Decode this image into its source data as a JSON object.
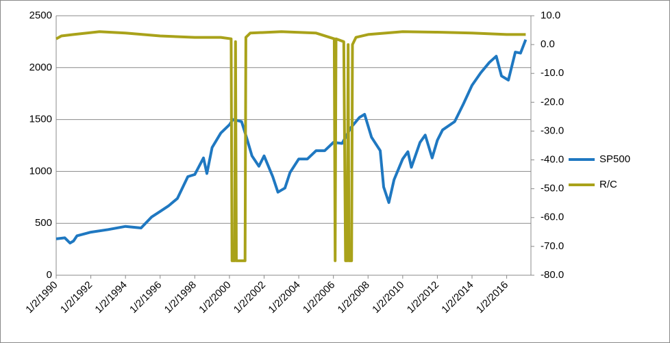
{
  "chart_data": {
    "type": "line",
    "xlim": [
      1990,
      2017.4
    ],
    "xticks": [
      {
        "value": 1990,
        "label": "1/2/1990"
      },
      {
        "value": 1992,
        "label": "1/2/1992"
      },
      {
        "value": 1994,
        "label": "1/2/1994"
      },
      {
        "value": 1996,
        "label": "1/2/1996"
      },
      {
        "value": 1998,
        "label": "1/2/1998"
      },
      {
        "value": 2000,
        "label": "1/2/2000"
      },
      {
        "value": 2002,
        "label": "1/2/2002"
      },
      {
        "value": 2004,
        "label": "1/2/2004"
      },
      {
        "value": 2006,
        "label": "1/2/2006"
      },
      {
        "value": 2008,
        "label": "1/2/2008"
      },
      {
        "value": 2010,
        "label": "1/2/2010"
      },
      {
        "value": 2012,
        "label": "1/2/2012"
      },
      {
        "value": 2014,
        "label": "1/2/2014"
      },
      {
        "value": 2016,
        "label": "1/2/2016"
      }
    ],
    "ylim": [
      0,
      2500
    ],
    "yticks": [
      0,
      500,
      1000,
      1500,
      2000,
      2500
    ],
    "y2lim": [
      -80,
      10
    ],
    "y2ticks": [
      {
        "value": -80,
        "label": "-80.0"
      },
      {
        "value": -70,
        "label": "-70.0"
      },
      {
        "value": -60,
        "label": "-60.0"
      },
      {
        "value": -50,
        "label": "-50.0"
      },
      {
        "value": -40,
        "label": "-40.0"
      },
      {
        "value": -30,
        "label": "-30.0"
      },
      {
        "value": -20,
        "label": "-20.0"
      },
      {
        "value": -10,
        "label": "-10.0"
      },
      {
        "value": 0,
        "label": "0.0"
      },
      {
        "value": 10,
        "label": "10.0"
      }
    ],
    "grid": true,
    "legend": "right",
    "series": [
      {
        "name": "SP500",
        "color": "#1F78C1",
        "x": [
          1990,
          1990.5,
          1990.8,
          1991,
          1991.2,
          1992,
          1993,
          1994,
          1994.9,
          1995.5,
          1996,
          1996.5,
          1997,
          1997.6,
          1998,
          1998.5,
          1998.7,
          1999,
          1999.5,
          2000,
          2000.2,
          2000.7,
          2001,
          2001.3,
          2001.7,
          2002,
          2002.5,
          2002.8,
          2003.2,
          2003.5,
          2004,
          2004.5,
          2005,
          2005.5,
          2006,
          2006.5,
          2007,
          2007.5,
          2007.8,
          2008.2,
          2008.7,
          2008.9,
          2009.2,
          2009.5,
          2010,
          2010.3,
          2010.5,
          2011,
          2011.3,
          2011.7,
          2012,
          2012.3,
          2013,
          2013.5,
          2014,
          2014.5,
          2015,
          2015.4,
          2015.7,
          2016.1,
          2016.5,
          2016.8,
          2017.1
        ],
        "values": [
          350,
          360,
          310,
          330,
          380,
          415,
          440,
          470,
          455,
          560,
          615,
          670,
          740,
          950,
          970,
          1130,
          980,
          1230,
          1370,
          1450,
          1500,
          1480,
          1320,
          1150,
          1050,
          1150,
          950,
          800,
          840,
          990,
          1120,
          1120,
          1200,
          1200,
          1280,
          1270,
          1420,
          1520,
          1550,
          1330,
          1200,
          850,
          700,
          920,
          1120,
          1190,
          1040,
          1280,
          1350,
          1130,
          1300,
          1400,
          1480,
          1650,
          1830,
          1950,
          2050,
          2110,
          1920,
          1880,
          2150,
          2140,
          2270
        ]
      },
      {
        "name": "R/C",
        "color": "#A9A21A",
        "axis": "y2",
        "x": [
          1990,
          1990.3,
          1991,
          1992.5,
          1994,
          1996,
          1998,
          1999.5,
          2000.1,
          2000.15,
          2000.3,
          2000.35,
          2000.4,
          2000.9,
          2000.95,
          2001.2,
          2003,
          2005,
          2006.05,
          2006.1,
          2006.15,
          2006.6,
          2006.7,
          2006.8,
          2006.85,
          2006.9,
          2007.05,
          2007.1,
          2007.3,
          2008,
          2010,
          2012,
          2014,
          2016,
          2017.1
        ],
        "values": [
          2,
          3,
          3.5,
          4.5,
          4,
          3,
          2.5,
          2.5,
          2,
          -75,
          -75,
          1,
          -75,
          -75,
          2.5,
          4,
          4.5,
          4,
          2,
          -75,
          2,
          1,
          -75,
          -75,
          0,
          -75,
          -75,
          0,
          2.5,
          3.5,
          4.5,
          4.3,
          4,
          3.5,
          3.5
        ]
      }
    ]
  }
}
